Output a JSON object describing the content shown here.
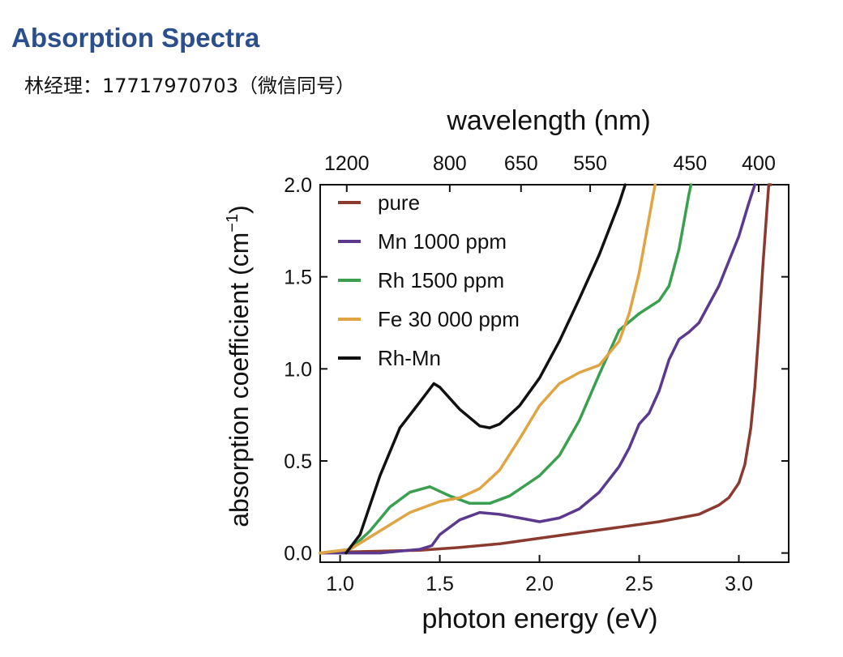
{
  "header": {
    "title": "Absorption Spectra",
    "subtitle": "林经理：17717970703（微信同号）"
  },
  "chart_data": {
    "type": "line",
    "xlabel": "photon energy (eV)",
    "ylabel": "absorption coefficient (cm",
    "ylabel_sup": "−1",
    "ylabel_close": ")",
    "top_axis_label": "wavelength (nm)",
    "xlim": [
      0.9,
      3.25
    ],
    "ylim": [
      -0.05,
      2.0
    ],
    "x_ticks": [
      1.0,
      1.5,
      2.0,
      2.5,
      3.0
    ],
    "x_tick_labels": [
      "1.0",
      "1.5",
      "2.0",
      "2.5",
      "3.0"
    ],
    "y_ticks": [
      0.0,
      0.5,
      1.0,
      1.5,
      2.0
    ],
    "y_tick_labels": [
      "0.0",
      "0.5",
      "1.0",
      "1.5",
      "2.0"
    ],
    "top_ticks": [
      1200,
      800,
      650,
      550,
      450,
      400
    ],
    "top_tick_labels": [
      "1200",
      "800",
      "650",
      "550",
      "450",
      "400"
    ],
    "legend_position": "top-left",
    "series": [
      {
        "name": "pure",
        "color": "#8b3a2f",
        "x": [
          0.9,
          1.0,
          1.2,
          1.4,
          1.6,
          1.8,
          2.0,
          2.2,
          2.4,
          2.6,
          2.8,
          2.9,
          2.95,
          3.0,
          3.03,
          3.06,
          3.08,
          3.1,
          3.12,
          3.14,
          3.15,
          3.16
        ],
        "y": [
          0.0,
          0.005,
          0.01,
          0.015,
          0.03,
          0.05,
          0.08,
          0.11,
          0.14,
          0.17,
          0.21,
          0.26,
          0.3,
          0.38,
          0.48,
          0.68,
          0.9,
          1.2,
          1.55,
          1.85,
          2.0,
          2.0
        ]
      },
      {
        "name": "Mn 1000 ppm",
        "color": "#5b3a8e",
        "x": [
          0.9,
          1.2,
          1.4,
          1.46,
          1.5,
          1.6,
          1.7,
          1.8,
          1.9,
          2.0,
          2.1,
          2.2,
          2.3,
          2.4,
          2.45,
          2.5,
          2.55,
          2.6,
          2.65,
          2.7,
          2.75,
          2.8,
          2.9,
          3.0,
          3.05,
          3.08
        ],
        "y": [
          0.0,
          0.0,
          0.02,
          0.04,
          0.1,
          0.18,
          0.22,
          0.21,
          0.19,
          0.17,
          0.19,
          0.24,
          0.33,
          0.47,
          0.57,
          0.7,
          0.76,
          0.88,
          1.05,
          1.16,
          1.2,
          1.25,
          1.45,
          1.72,
          1.9,
          2.0
        ]
      },
      {
        "name": "Rh 1500 ppm",
        "color": "#3aa050",
        "x": [
          0.9,
          1.05,
          1.15,
          1.25,
          1.35,
          1.45,
          1.55,
          1.65,
          1.75,
          1.85,
          2.0,
          2.1,
          2.2,
          2.3,
          2.4,
          2.5,
          2.6,
          2.65,
          2.7,
          2.75,
          2.76
        ],
        "y": [
          0.0,
          0.02,
          0.12,
          0.25,
          0.33,
          0.36,
          0.31,
          0.27,
          0.27,
          0.31,
          0.42,
          0.53,
          0.72,
          0.97,
          1.21,
          1.3,
          1.37,
          1.45,
          1.65,
          1.95,
          2.0
        ]
      },
      {
        "name": "Fe 30 000 ppm",
        "color": "#e0a443",
        "x": [
          0.9,
          1.05,
          1.2,
          1.35,
          1.5,
          1.6,
          1.7,
          1.8,
          1.9,
          2.0,
          2.1,
          2.2,
          2.3,
          2.4,
          2.45,
          2.5,
          2.55,
          2.58
        ],
        "y": [
          0.0,
          0.02,
          0.12,
          0.22,
          0.28,
          0.3,
          0.35,
          0.45,
          0.62,
          0.8,
          0.92,
          0.98,
          1.02,
          1.15,
          1.3,
          1.52,
          1.82,
          2.0
        ]
      },
      {
        "name": "Rh-Mn",
        "color": "#111111",
        "x": [
          1.03,
          1.1,
          1.2,
          1.3,
          1.4,
          1.47,
          1.5,
          1.6,
          1.7,
          1.75,
          1.8,
          1.9,
          2.0,
          2.1,
          2.2,
          2.3,
          2.4,
          2.43
        ],
        "y": [
          0.0,
          0.1,
          0.42,
          0.68,
          0.82,
          0.92,
          0.9,
          0.78,
          0.69,
          0.68,
          0.7,
          0.8,
          0.95,
          1.15,
          1.38,
          1.62,
          1.9,
          2.0
        ]
      }
    ]
  }
}
